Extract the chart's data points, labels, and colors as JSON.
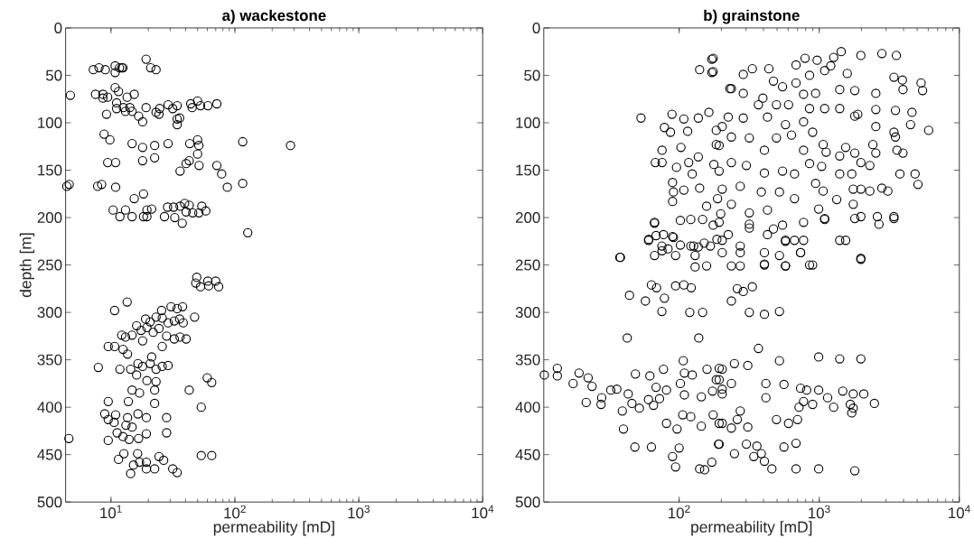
{
  "chart_data": [
    {
      "type": "scatter",
      "title": "a) wackestone",
      "xlabel": "permeability [mD]",
      "ylabel": "depth [m]",
      "log": "x",
      "marker": "circle",
      "color": "#000000",
      "xlim": [
        4.3,
        10000
      ],
      "ylim": [
        500,
        0
      ],
      "xticks": [
        {
          "value": 10,
          "label": "10$^{1}$"
        },
        {
          "value": 100,
          "label": "10$^{2}$"
        },
        {
          "value": 1000,
          "label": "10$^{3}$"
        },
        {
          "value": 10000,
          "label": "10$^{4}$"
        }
      ],
      "yticks": [
        0,
        50,
        100,
        150,
        200,
        250,
        300,
        350,
        400,
        450,
        500
      ],
      "x": [
        7.2,
        8.0,
        9.0,
        10.8,
        10.8,
        11.7,
        12.2,
        12.5,
        19.2,
        20.9,
        23.1,
        4.7,
        7.5,
        8.6,
        8.6,
        9.4,
        10.8,
        11.5,
        13.5,
        15.4,
        11.1,
        11.1,
        12.6,
        13.1,
        14.2,
        14.8,
        16.7,
        18.0,
        19.2,
        23.1,
        24.7,
        24.4,
        28.9,
        31.5,
        34.2,
        34.2,
        35.8,
        34.2,
        44.0,
        50.0,
        45.2,
        52.8,
        60.5,
        71.5,
        9.2,
        8.8,
        9.8,
        14.8,
        18.0,
        22.5,
        28.9,
        43.2,
        50.0,
        51.2,
        50.0,
        115.6,
        281,
        9.4,
        10.9,
        18.0,
        22.5,
        36.1,
        40.4,
        42.8,
        51.4,
        71.5,
        78.2,
        86.9,
        115.6,
        4.4,
        4.6,
        7.8,
        8.4,
        10.9,
        15.4,
        18.3,
        10.4,
        11.8,
        13.1,
        14.8,
        18.3,
        19.5,
        19.5,
        21.3,
        27.0,
        28.6,
        32.7,
        32.0,
        36.1,
        37.6,
        39.3,
        42.8,
        40.4,
        45.7,
        51.2,
        54.1,
        58.2,
        127,
        49.2,
        48.3,
        52.8,
        60.5,
        61.5,
        70.0,
        74.0,
        13.5,
        10.7,
        30.5,
        34.2,
        37.8,
        25.6,
        47.3,
        19.0,
        20.7,
        23.1,
        25.9,
        28.9,
        32.4,
        35.8,
        38.3,
        16.1,
        17.5,
        19.5,
        21.9,
        24.4,
        28.1,
        32.4,
        36.1,
        40.4,
        12.2,
        13.1,
        14.8,
        18.0,
        9.5,
        10.7,
        12.5,
        13.6,
        25.9,
        21.3,
        7.9,
        11.8,
        14.4,
        16.5,
        18.0,
        20.7,
        23.1,
        25.9,
        28.9,
        16.1,
        19.5,
        23.1,
        14.8,
        17.0,
        22.5,
        42.8,
        59.8,
        65.0,
        9.5,
        13.8,
        22.5,
        53.5,
        8.9,
        10.9,
        13.6,
        16.5,
        19.3,
        28.1,
        9.5,
        10.6,
        13.2,
        14.8,
        9.5,
        11.2,
        12.5,
        14.0,
        16.7,
        19.3,
        28.1,
        4.57,
        12.7,
        11.5,
        16.4,
        17.0,
        15.2,
        19.3,
        24.4,
        26.6,
        19.3,
        22.5,
        14.4,
        31.5,
        34.2,
        53.5,
        65.0
      ],
      "values": [
        44,
        42,
        44,
        40,
        47,
        42,
        42,
        42,
        33,
        42,
        44,
        71,
        70,
        70,
        74,
        73,
        63,
        67,
        73,
        70,
        79,
        85,
        84,
        88,
        84,
        88,
        93,
        99,
        84,
        89,
        85,
        91,
        81,
        85,
        82,
        96,
        95,
        102,
        80,
        77,
        84,
        82,
        82,
        80,
        91,
        112,
        118,
        122,
        126,
        124,
        122,
        122,
        118,
        124,
        133,
        120,
        124,
        142,
        142,
        140,
        137,
        151,
        143,
        140,
        145,
        145,
        154,
        168,
        164,
        167,
        165,
        167,
        165,
        168,
        180,
        175,
        192,
        199,
        192,
        199,
        199,
        199,
        192,
        191,
        199,
        189,
        200,
        189,
        188,
        206,
        185,
        187,
        194,
        195,
        195,
        188,
        193,
        216,
        263,
        269,
        273,
        267,
        272,
        267,
        273,
        289,
        298,
        294,
        296,
        294,
        298,
        305,
        307,
        310,
        305,
        306,
        311,
        309,
        307,
        311,
        314,
        319,
        316,
        321,
        317,
        325,
        328,
        326,
        328,
        324,
        326,
        324,
        330,
        336,
        336,
        339,
        344,
        336,
        347,
        358,
        360,
        360,
        354,
        357,
        354,
        360,
        357,
        356,
        366,
        372,
        373,
        382,
        385,
        382,
        382,
        369,
        374,
        394,
        394,
        396,
        400,
        407,
        408,
        411,
        407,
        411,
        411,
        413,
        416,
        419,
        421,
        435,
        427,
        431,
        434,
        433,
        428,
        427,
        433,
        449,
        455,
        449,
        458,
        461,
        458,
        452,
        456,
        465,
        465,
        470,
        465,
        469,
        451,
        451
      ]
    },
    {
      "type": "scatter",
      "title": "b) grainstone",
      "xlabel": "permeability [mD]",
      "log": "x",
      "marker": "circle",
      "color": "#000000",
      "xlim": [
        10.8,
        10000
      ],
      "ylim": [
        500,
        0
      ],
      "xticks": [
        {
          "value": 100,
          "label": "10$^{2}$"
        },
        {
          "value": 1000,
          "label": "10$^{3}$"
        },
        {
          "value": 10000,
          "label": "10$^{4}$"
        }
      ],
      "yticks": [
        0,
        50,
        100,
        150,
        200,
        250,
        300,
        350,
        400,
        450,
        500
      ],
      "x": [
        53.4,
        140,
        171,
        171,
        230,
        88.9,
        108,
        78.5,
        86.7,
        115,
        137,
        163,
        184,
        75.5,
        103,
        67.6,
        75.5,
        95.7,
        117,
        137,
        124,
        177,
        193,
        89.7,
        91.1,
        89.7,
        108,
        140,
        157,
        188,
        66.7,
        102,
        121,
        147,
        198,
        60.7,
        77.3,
        89.7,
        66.7,
        75.5,
        94.3,
        127,
        130,
        167,
        38.1,
        130,
        157,
        175,
        175,
        236,
        287,
        287,
        333,
        437,
        368,
        396,
        495,
        547,
        683,
        792,
        966,
        1268,
        1435,
        1982,
        2800,
        3553,
        3415,
        3926,
        5333,
        5470,
        3963,
        2535,
        1794,
        1400,
        942,
        773,
        604,
        471,
        683,
        853,
        1093,
        1208,
        1585,
        1884,
        2535,
        3499,
        4592,
        6039,
        4487,
        3415,
        2535,
        1794,
        1400,
        1093,
        853,
        773,
        574,
        427,
        287,
        224,
        203,
        184,
        236,
        317,
        406,
        495,
        634,
        773,
        897,
        1067,
        1120,
        1400,
        1545,
        1794,
        1982,
        2415,
        2535,
        3589,
        3499,
        3963,
        4831,
        5070,
        3767,
        2800,
        3090,
        2297,
        1707,
        1400,
        1040,
        853,
        666,
        547,
        406,
        302,
        236,
        193,
        203,
        273,
        386,
        520,
        666,
        942,
        1067,
        1333,
        1750,
        1982,
        2297,
        3415,
        2600,
        1982,
        1750,
        1093,
        991,
        773,
        547,
        427,
        317,
        236,
        193,
        224,
        317,
        427,
        574,
        773,
        736,
        520,
        406,
        273,
        203,
        1400,
        1982,
        406,
        574,
        853,
        273,
        66.7,
        60.4,
        68.4,
        91.1,
        75.3,
        83.3,
        102,
        121,
        137,
        151,
        186,
        37.7,
        63.4,
        69.0,
        78.5,
        94.3,
        108,
        122,
        44.2,
        57.4,
        75.3,
        119,
        147,
        42.6,
        138,
        10.9,
        13.5,
        13.5,
        19.3,
        17.5,
        22.4,
        23.9,
        21.7,
        27.7,
        28.0,
        32.5,
        35.9,
        43.3,
        48.7,
        61.8,
        39.3,
        46.0,
        52.0,
        60.4,
        68.4,
        77.3,
        81.2,
        65.6,
        72.4,
        107,
        109,
        102,
        109,
        124,
        158,
        184,
        144,
        173,
        203,
        193,
        106,
        121,
        144,
        175,
        203,
        96.6,
        81.2,
        40.0,
        48.3,
        63.4,
        100,
        89.7,
        94.3,
        140,
        152,
        171,
        191,
        175,
        203,
        273,
        317,
        471,
        574,
        666,
        736,
        897,
        574,
        406,
        236,
        260,
        287,
        333,
        236,
        317,
        406,
        520,
        1093,
        1794,
        1545,
        1982,
        2670,
        3415,
        368,
        520,
        991,
        1400,
        1982,
        203,
        248,
        309,
        193,
        236,
        203,
        416,
        416,
        560,
        736,
        813,
        991,
        773,
        718,
        897,
        1148,
        1268,
        1472,
        1750,
        2080,
        2477,
        1667,
        1750,
        1707,
        273,
        260,
        193,
        236,
        309,
        495,
        604,
        700,
        560,
        683,
        359,
        341,
        386,
        406,
        302,
        248,
        193,
        459,
        683,
        991,
        1794
      ],
      "values": [
        95,
        44,
        33,
        47,
        64,
        91,
        96,
        105,
        110,
        109,
        95,
        89,
        108,
        129,
        126,
        142,
        142,
        147,
        142,
        136,
        154,
        144,
        124,
        163,
        173,
        183,
        171,
        169,
        188,
        180,
        206,
        203,
        202,
        202,
        196,
        223,
        218,
        220,
        240,
        235,
        240,
        230,
        240,
        230,
        242,
        252,
        251,
        32,
        46,
        64,
        49,
        69,
        43,
        43,
        81,
        74,
        81,
        62,
        39,
        32,
        34,
        31,
        25,
        29,
        27,
        29,
        52,
        55,
        58,
        66,
        65,
        69,
        66,
        65,
        69,
        70,
        81,
        56,
        58,
        50,
        45,
        40,
        48,
        91,
        86,
        87,
        89,
        108,
        102,
        110,
        104,
        93,
        85,
        85,
        85,
        99,
        102,
        94,
        95,
        94,
        104,
        123,
        115,
        116,
        129,
        116,
        113,
        129,
        110,
        123,
        131,
        135,
        126,
        132,
        142,
        123,
        132,
        129,
        115,
        132,
        154,
        165,
        154,
        169,
        172,
        145,
        154,
        154,
        146,
        143,
        154,
        151,
        153,
        145,
        142,
        151,
        170,
        167,
        173,
        173,
        180,
        164,
        172,
        181,
        170,
        170,
        172,
        199,
        199,
        199,
        186,
        201,
        191,
        205,
        208,
        192,
        195,
        186,
        205,
        218,
        211,
        218,
        224,
        224,
        237,
        240,
        237,
        230,
        237,
        224,
        243,
        249,
        251,
        250,
        251,
        205,
        224,
        219,
        221,
        230,
        233,
        229,
        230,
        231,
        227,
        223,
        242,
        271,
        274,
        285,
        272,
        271,
        274,
        282,
        288,
        299,
        300,
        300,
        327,
        327,
        366,
        359,
        367,
        364,
        375,
        369,
        378,
        395,
        397,
        390,
        382,
        381,
        386,
        365,
        367,
        404,
        396,
        401,
        392,
        379,
        360,
        382,
        398,
        391,
        351,
        364,
        375,
        387,
        366,
        360,
        371,
        389,
        383,
        381,
        359,
        408,
        410,
        420,
        408,
        417,
        423,
        417,
        423,
        442,
        442,
        443,
        452,
        463,
        465,
        466,
        458,
        439,
        208,
        224,
        237,
        207,
        212,
        225,
        224,
        237,
        250,
        251,
        250,
        251,
        275,
        278,
        273,
        288,
        300,
        302,
        299,
        202,
        201,
        224,
        244,
        207,
        201,
        338,
        351,
        347,
        349,
        349,
        360,
        354,
        356,
        371,
        375,
        386,
        375,
        390,
        376,
        380,
        382,
        382,
        394,
        400,
        397,
        390,
        400,
        383,
        386,
        386,
        396,
        397,
        401,
        406,
        404,
        413,
        417,
        422,
        421,
        413,
        417,
        413,
        442,
        438,
        441,
        452,
        449,
        457,
        439,
        449,
        439,
        465,
        465,
        465,
        467
      ]
    }
  ]
}
